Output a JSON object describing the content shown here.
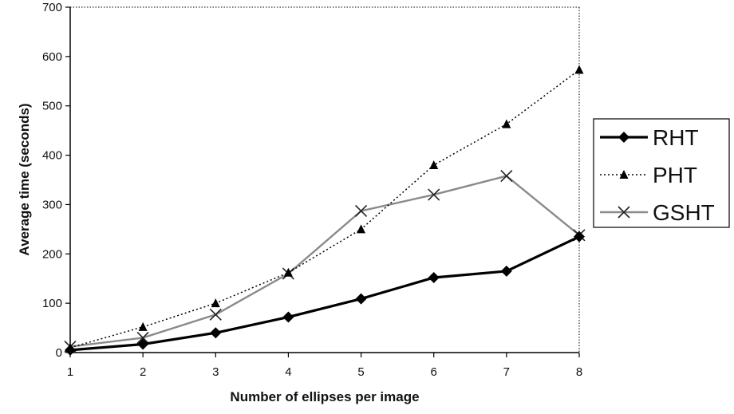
{
  "chart_data": {
    "type": "line",
    "title": "",
    "xlabel": "Number of ellipses per image",
    "ylabel": "Average time (seconds)",
    "x": [
      1,
      2,
      3,
      4,
      5,
      6,
      7,
      8
    ],
    "xlim": [
      1,
      8
    ],
    "ylim": [
      0,
      700
    ],
    "yticks": [
      0,
      100,
      200,
      300,
      400,
      500,
      600,
      700
    ],
    "grid": false,
    "legend_position": "right",
    "series": [
      {
        "name": "RHT",
        "style": "solid-thick",
        "marker": "diamond",
        "color": "#000000",
        "values": [
          5,
          17,
          40,
          72,
          109,
          152,
          165,
          235
        ]
      },
      {
        "name": "PHT",
        "style": "dotted",
        "marker": "triangle",
        "color": "#000000",
        "values": [
          10,
          52,
          100,
          162,
          250,
          380,
          463,
          573
        ]
      },
      {
        "name": "GSHT",
        "style": "gray-solid",
        "marker": "x",
        "color": "#8a8a8a",
        "values": [
          12,
          30,
          77,
          160,
          287,
          320,
          358,
          238
        ]
      }
    ]
  }
}
